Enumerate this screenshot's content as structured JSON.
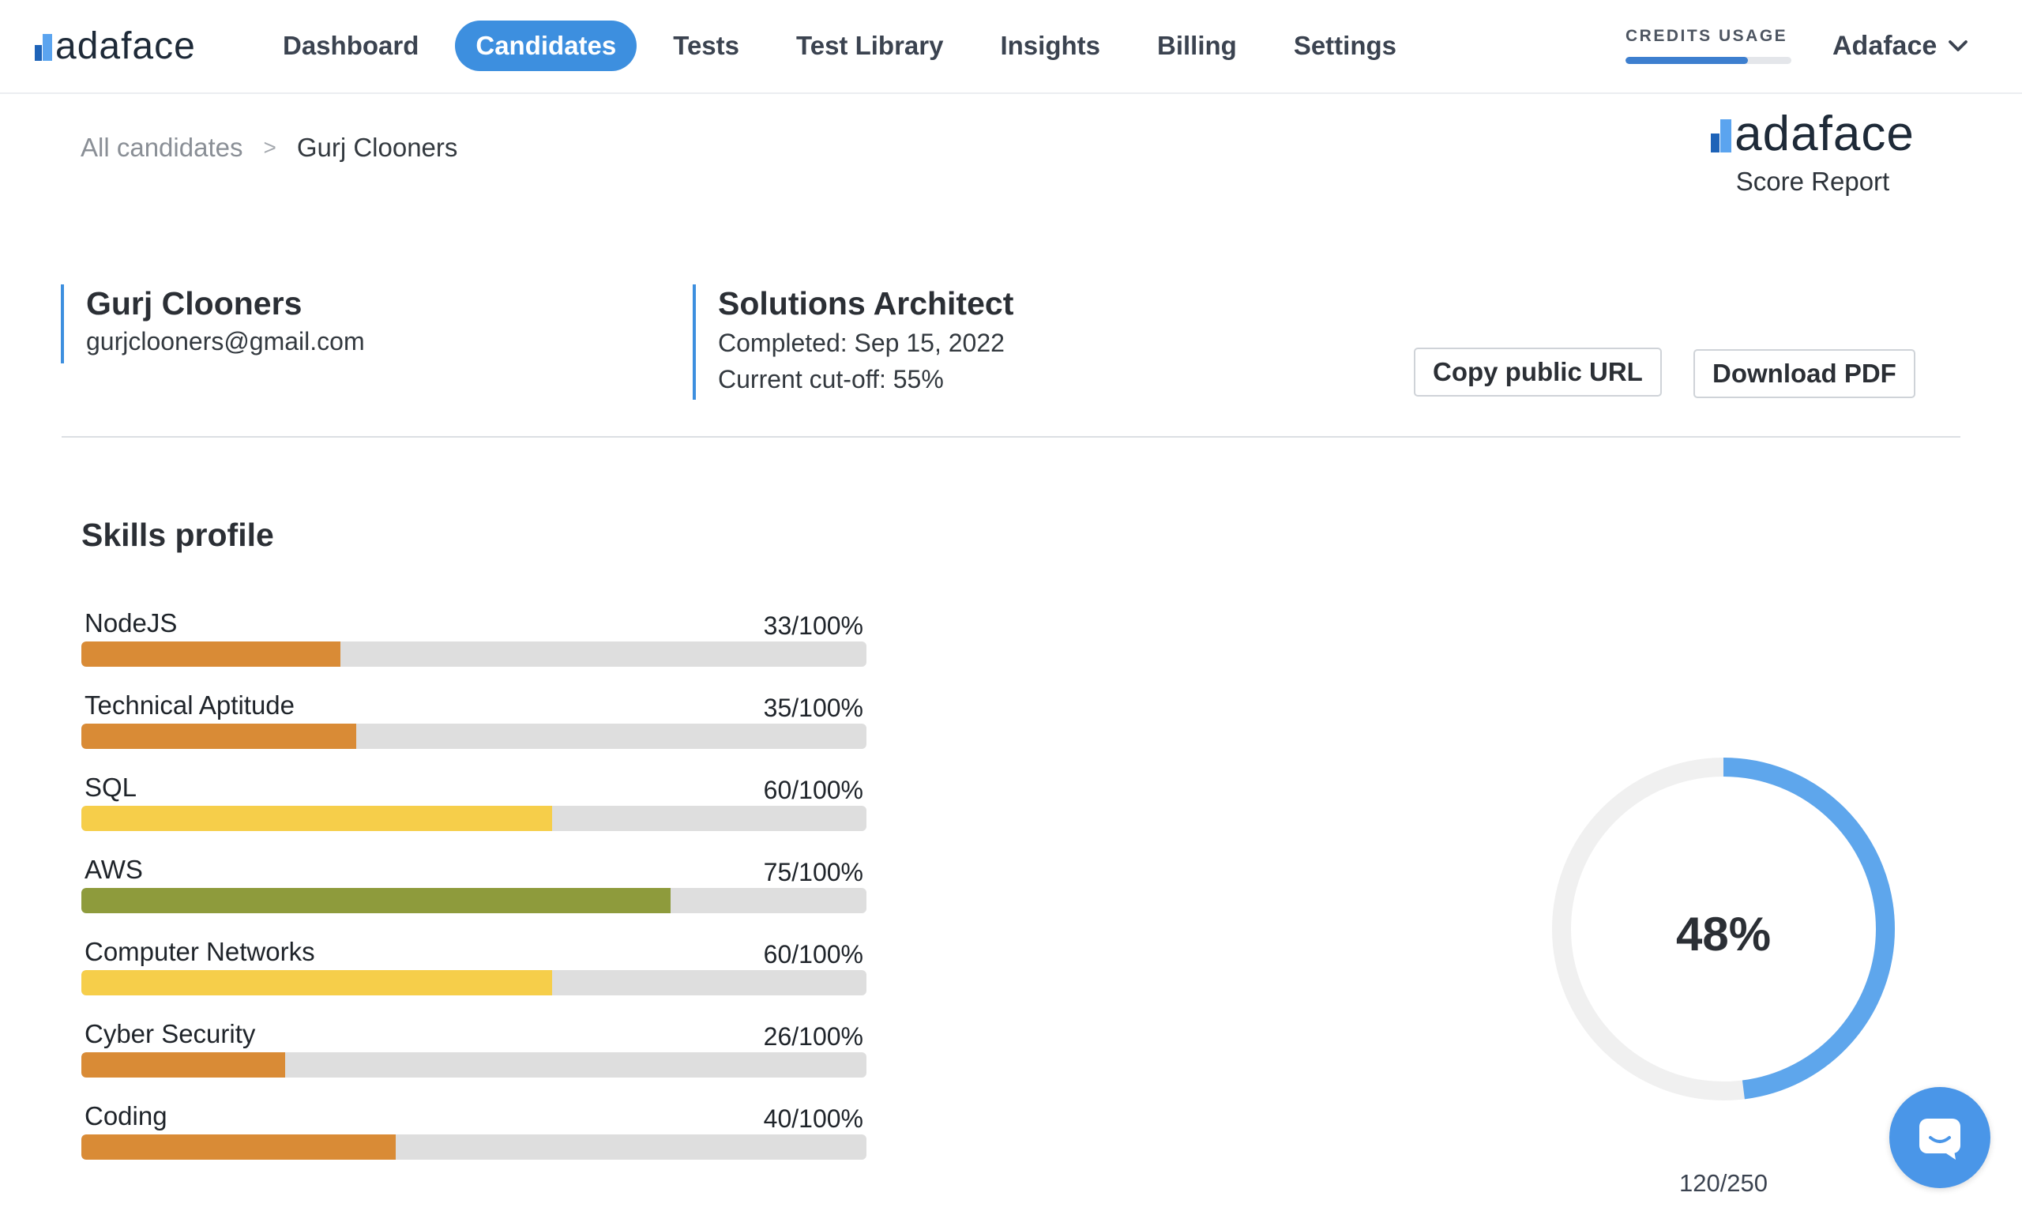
{
  "brand": {
    "logo_text": "adaface",
    "report_subtitle": "Score Report"
  },
  "nav": {
    "items": [
      {
        "label": "Dashboard",
        "active": false
      },
      {
        "label": "Candidates",
        "active": true
      },
      {
        "label": "Tests",
        "active": false
      },
      {
        "label": "Test Library",
        "active": false
      },
      {
        "label": "Insights",
        "active": false
      },
      {
        "label": "Billing",
        "active": false
      },
      {
        "label": "Settings",
        "active": false
      }
    ],
    "credits_label": "CREDITS USAGE",
    "credits_fraction": 0.74,
    "account_name": "Adaface"
  },
  "breadcrumb": {
    "parent": "All candidates",
    "separator": ">",
    "current": "Gurj Clooners"
  },
  "candidate": {
    "name": "Gurj Clooners",
    "email": "gurjclooners@gmail.com"
  },
  "job": {
    "title": "Solutions Architect",
    "completed": "Completed: Sep 15, 2022",
    "cutoff": "Current cut-off: 55%"
  },
  "actions": {
    "copy_url": "Copy public URL",
    "download_pdf": "Download PDF"
  },
  "skills": {
    "title": "Skills profile",
    "items": [
      {
        "name": "NodeJS",
        "score_text": "33/100%",
        "value": 33,
        "color": "#d98b36"
      },
      {
        "name": "Technical Aptitude",
        "score_text": "35/100%",
        "value": 35,
        "color": "#d98b36"
      },
      {
        "name": "SQL",
        "score_text": "60/100%",
        "value": 60,
        "color": "#f6ce4a"
      },
      {
        "name": "AWS",
        "score_text": "75/100%",
        "value": 75,
        "color": "#8e9b3c"
      },
      {
        "name": "Computer Networks",
        "score_text": "60/100%",
        "value": 60,
        "color": "#f6ce4a"
      },
      {
        "name": "Cyber Security",
        "score_text": "26/100%",
        "value": 26,
        "color": "#d98b36"
      },
      {
        "name": "Coding",
        "score_text": "40/100%",
        "value": 40,
        "color": "#d98b36"
      }
    ]
  },
  "overall": {
    "percent_label": "48%",
    "percent": 48,
    "points": "120/250",
    "ring_color": "#5ea6ec",
    "track_color": "#f0f0f0"
  }
}
